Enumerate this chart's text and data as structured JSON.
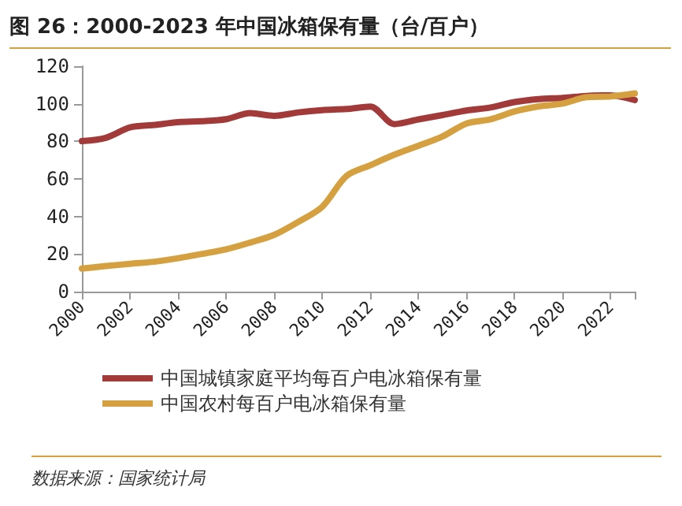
{
  "chart_data": {
    "type": "line",
    "title": "图 26：2000-2023 年中国冰箱保有量（台/百户）",
    "categories": [
      "2000",
      null,
      "2002",
      null,
      "2004",
      null,
      "2006",
      null,
      "2008",
      null,
      "2010",
      null,
      "2012",
      null,
      "2014",
      null,
      "2016",
      null,
      "2018",
      null,
      "2020",
      null,
      "2022",
      null
    ],
    "series": [
      {
        "name": "中国城镇家庭平均每百户电冰箱保有量",
        "color": "#a33a3a",
        "values": [
          80.1,
          81.9,
          87.4,
          88.7,
          90.2,
          90.7,
          91.8,
          95.0,
          93.6,
          95.4,
          96.6,
          97.2,
          98.5,
          89.2,
          91.7,
          94.0,
          96.4,
          98.0,
          100.9,
          102.5,
          103.1,
          104.2,
          104.5,
          102.0
        ]
      },
      {
        "name": "中国农村每百户电冰箱保有量",
        "color": "#d4a040",
        "values": [
          12.3,
          13.6,
          14.8,
          15.9,
          17.8,
          20.1,
          22.5,
          26.1,
          30.2,
          37.1,
          45.2,
          61.5,
          67.3,
          72.9,
          77.6,
          82.6,
          89.5,
          91.7,
          95.9,
          98.6,
          100.1,
          103.5,
          103.9,
          105.5
        ]
      }
    ],
    "ylim": [
      0,
      120
    ],
    "yticks": [
      0,
      20,
      40,
      60,
      80,
      100,
      120
    ],
    "grid": false,
    "legend": "bottom",
    "marker": "none",
    "line_style": "solid",
    "annotations": [
      "数据来源：国家统计局"
    ]
  }
}
